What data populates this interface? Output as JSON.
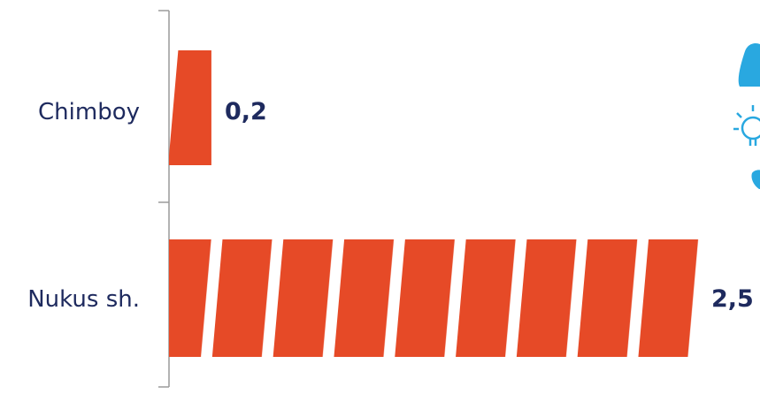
{
  "colors": {
    "bar": "#e64a27",
    "text": "#1e2a5e",
    "axis": "#9a9a9a",
    "icon": "#29a8e0"
  },
  "icon": "idea-lightbulb-icon",
  "chart_data": {
    "type": "bar",
    "orientation": "horizontal",
    "categories": [
      "Chimboy",
      "Nukus sh."
    ],
    "values": [
      0.2,
      2.5
    ],
    "value_labels": [
      "0,2",
      "2,5"
    ],
    "xlim": [
      0,
      2.5
    ],
    "grid": false,
    "legend": "none"
  }
}
